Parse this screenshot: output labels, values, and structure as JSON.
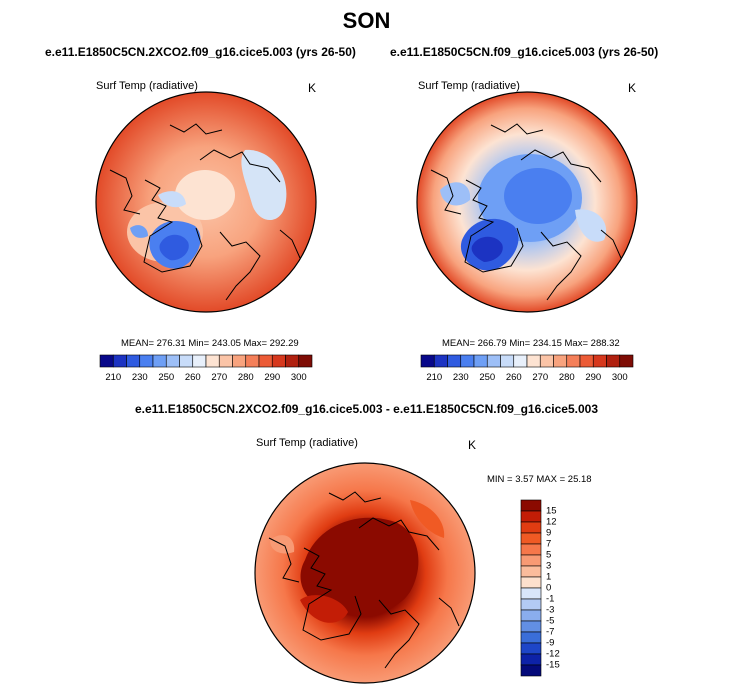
{
  "figure": {
    "season": "SON",
    "panels": [
      {
        "title": "e.e11.E1850C5CN.2XCO2.f09_g16.cice5.003 (yrs 26-50)",
        "variable": "Surf Temp (radiative)",
        "unit": "K",
        "stats": "MEAN= 276.31   Min= 243.05   Max= 292.29",
        "mean": 276.31,
        "min": 243.05,
        "max": 292.29
      },
      {
        "title": "e.e11.E1850C5CN.f09_g16.cice5.003 (yrs 26-50)",
        "variable": "Surf Temp (radiative)",
        "unit": "K",
        "stats": "MEAN= 266.79   Min= 234.15   Max= 288.32",
        "mean": 266.79,
        "min": 234.15,
        "max": 288.32
      },
      {
        "title": "e.e11.E1850C5CN.2XCO2.f09_g16.cice5.003 - e.e11.E1850C5CN.f09_g16.cice5.003",
        "variable": "Surf Temp (radiative)",
        "unit": "K",
        "stats": "MIN =   3.57 MAX =  25.18",
        "min": 3.57,
        "max": 25.18
      }
    ],
    "abs_colorbar": {
      "labels": [
        "210",
        "230",
        "250",
        "260",
        "270",
        "280",
        "290",
        "300"
      ],
      "colors": [
        "#08088a",
        "#1c33c2",
        "#2f5be0",
        "#4a7ff0",
        "#6e9ff5",
        "#9dbff7",
        "#c8dcf9",
        "#e8f0fb",
        "#fde3d2",
        "#fbc4a7",
        "#f8a37e",
        "#f47f59",
        "#ec5b36",
        "#d6381d",
        "#b0200f",
        "#7e0c05"
      ]
    },
    "diff_colorbar": {
      "labels": [
        "15",
        "12",
        "9",
        "7",
        "5",
        "3",
        "1",
        "0",
        "-1",
        "-3",
        "-5",
        "-7",
        "-9",
        "-12",
        "-15"
      ],
      "colors": [
        "#8b0a00",
        "#c31d06",
        "#e03c12",
        "#f05a24",
        "#f6774a",
        "#f89a74",
        "#fbbc9c",
        "#fde0cd",
        "#d9e6fa",
        "#b3cbf4",
        "#8aaded",
        "#628fe4",
        "#3a6ed9",
        "#1e46c8",
        "#0d22a8",
        "#040a7a"
      ]
    }
  }
}
